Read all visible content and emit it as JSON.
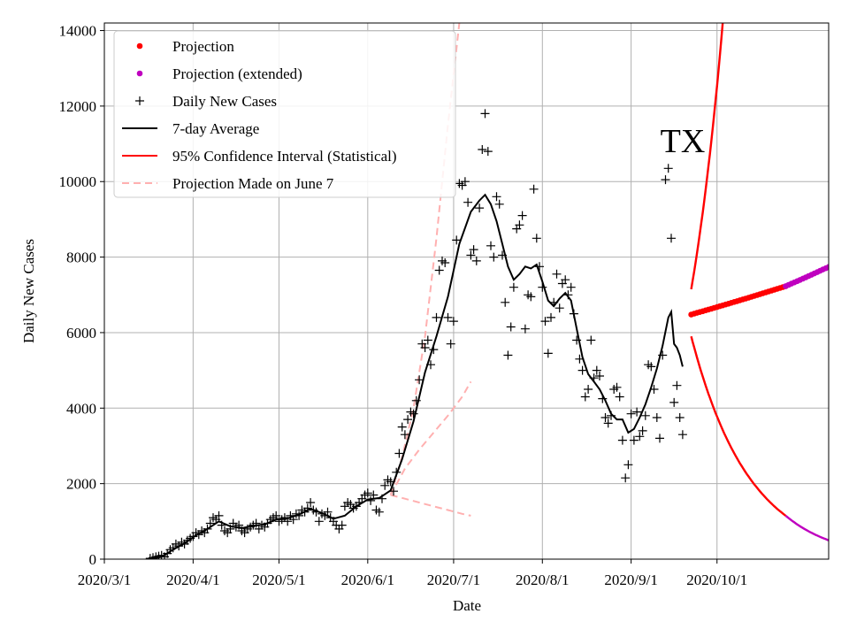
{
  "chart_data": {
    "type": "line",
    "title": "",
    "annotation": "TX",
    "xlabel": "Date",
    "ylabel": "Daily New Cases",
    "xlim": [
      "2020-03-01",
      "2020-11-09"
    ],
    "ylim": [
      0,
      14200
    ],
    "grid": true,
    "legend_position": "top-left",
    "x_ticks": [
      "2020-03-01",
      "2020-04-01",
      "2020-05-01",
      "2020-06-01",
      "2020-07-01",
      "2020-08-01",
      "2020-09-01",
      "2020-10-01"
    ],
    "x_tick_labels": [
      "2020/3/1",
      "2020/4/1",
      "2020/5/1",
      "2020/6/1",
      "2020/7/1",
      "2020/8/1",
      "2020/9/1",
      "2020/10/1"
    ],
    "y_ticks": [
      0,
      2000,
      4000,
      6000,
      8000,
      10000,
      12000,
      14000
    ],
    "y_tick_labels": [
      "0",
      "2000",
      "4000",
      "6000",
      "8000",
      "10000",
      "12000",
      "14000"
    ],
    "legend": [
      {
        "key": "projection",
        "label": "Projection",
        "color": "#ff0000",
        "marker": "dot"
      },
      {
        "key": "projection_extended",
        "label": "Projection (extended)",
        "color": "#bf00bf",
        "marker": "dot"
      },
      {
        "key": "daily",
        "label": "Daily New Cases",
        "color": "#000000",
        "marker": "plus"
      },
      {
        "key": "avg",
        "label": "7-day Average",
        "color": "#000000",
        "marker": "line"
      },
      {
        "key": "ci",
        "label": "95% Confidence Interval (Statistical)",
        "color": "#ff0000",
        "marker": "line"
      },
      {
        "key": "june7",
        "label": "Projection Made on June 7",
        "color": "#ffb0b0",
        "marker": "dashed"
      }
    ],
    "daily_cases": [
      [
        16,
        20
      ],
      [
        17,
        40
      ],
      [
        18,
        60
      ],
      [
        19,
        80
      ],
      [
        20,
        100
      ],
      [
        21,
        60
      ],
      [
        22,
        150
      ],
      [
        23,
        250
      ],
      [
        24,
        300
      ],
      [
        25,
        400
      ],
      [
        26,
        350
      ],
      [
        27,
        450
      ],
      [
        28,
        400
      ],
      [
        29,
        500
      ],
      [
        30,
        550
      ],
      [
        31,
        600
      ],
      [
        32,
        700
      ],
      [
        33,
        650
      ],
      [
        34,
        750
      ],
      [
        35,
        700
      ],
      [
        36,
        800
      ],
      [
        37,
        950
      ],
      [
        38,
        1100
      ],
      [
        39,
        1050
      ],
      [
        40,
        1150
      ],
      [
        41,
        900
      ],
      [
        42,
        750
      ],
      [
        43,
        700
      ],
      [
        44,
        800
      ],
      [
        45,
        950
      ],
      [
        46,
        850
      ],
      [
        47,
        900
      ],
      [
        48,
        750
      ],
      [
        49,
        700
      ],
      [
        50,
        800
      ],
      [
        51,
        850
      ],
      [
        52,
        900
      ],
      [
        53,
        950
      ],
      [
        54,
        800
      ],
      [
        55,
        900
      ],
      [
        56,
        850
      ],
      [
        57,
        950
      ],
      [
        58,
        1050
      ],
      [
        59,
        1100
      ],
      [
        60,
        1150
      ],
      [
        61,
        1000
      ],
      [
        62,
        1050
      ],
      [
        63,
        1100
      ],
      [
        64,
        1000
      ],
      [
        65,
        1150
      ],
      [
        66,
        1050
      ],
      [
        67,
        1200
      ],
      [
        68,
        1150
      ],
      [
        69,
        1300
      ],
      [
        70,
        1250
      ],
      [
        71,
        1350
      ],
      [
        72,
        1500
      ],
      [
        73,
        1300
      ],
      [
        74,
        1250
      ],
      [
        75,
        1000
      ],
      [
        76,
        1200
      ],
      [
        77,
        1150
      ],
      [
        78,
        1250
      ],
      [
        79,
        1100
      ],
      [
        80,
        1000
      ],
      [
        81,
        900
      ],
      [
        82,
        800
      ],
      [
        83,
        900
      ],
      [
        84,
        1400
      ],
      [
        85,
        1500
      ],
      [
        86,
        1450
      ],
      [
        87,
        1350
      ],
      [
        88,
        1400
      ],
      [
        89,
        1500
      ],
      [
        90,
        1600
      ],
      [
        91,
        1700
      ],
      [
        92,
        1750
      ],
      [
        93,
        1550
      ],
      [
        94,
        1700
      ],
      [
        95,
        1300
      ],
      [
        96,
        1250
      ],
      [
        97,
        1600
      ],
      [
        98,
        1950
      ],
      [
        99,
        2100
      ],
      [
        100,
        2050
      ],
      [
        101,
        1800
      ],
      [
        102,
        2300
      ],
      [
        103,
        2800
      ],
      [
        104,
        3500
      ],
      [
        105,
        3300
      ],
      [
        106,
        3700
      ],
      [
        107,
        3900
      ],
      [
        108,
        3850
      ],
      [
        109,
        4200
      ],
      [
        110,
        4750
      ],
      [
        111,
        5700
      ],
      [
        112,
        5600
      ],
      [
        113,
        5800
      ],
      [
        114,
        5150
      ],
      [
        115,
        5550
      ],
      [
        116,
        6400
      ],
      [
        117,
        7650
      ],
      [
        118,
        7900
      ],
      [
        119,
        7850
      ],
      [
        120,
        6400
      ],
      [
        121,
        5700
      ],
      [
        122,
        6300
      ],
      [
        123,
        8450
      ],
      [
        124,
        9950
      ],
      [
        125,
        9900
      ],
      [
        126,
        10000
      ],
      [
        127,
        9450
      ],
      [
        128,
        8050
      ],
      [
        129,
        8200
      ],
      [
        130,
        7900
      ],
      [
        131,
        9300
      ],
      [
        132,
        10850
      ],
      [
        133,
        11800
      ],
      [
        134,
        10800
      ],
      [
        135,
        8300
      ],
      [
        136,
        8000
      ],
      [
        137,
        9600
      ],
      [
        138,
        9400
      ],
      [
        139,
        8050
      ],
      [
        140,
        6800
      ],
      [
        141,
        5400
      ],
      [
        142,
        6150
      ],
      [
        143,
        7200
      ],
      [
        144,
        8750
      ],
      [
        145,
        8850
      ],
      [
        146,
        9100
      ],
      [
        147,
        6100
      ],
      [
        148,
        7000
      ],
      [
        149,
        6950
      ],
      [
        150,
        9800
      ],
      [
        151,
        8500
      ],
      [
        152,
        7750
      ],
      [
        153,
        7200
      ],
      [
        154,
        6300
      ],
      [
        155,
        5450
      ],
      [
        156,
        6400
      ],
      [
        157,
        6800
      ],
      [
        158,
        7550
      ],
      [
        159,
        6650
      ],
      [
        160,
        7300
      ],
      [
        161,
        7400
      ],
      [
        162,
        7000
      ],
      [
        163,
        7200
      ],
      [
        164,
        6500
      ],
      [
        165,
        5800
      ],
      [
        166,
        5300
      ],
      [
        167,
        5000
      ],
      [
        168,
        4300
      ],
      [
        169,
        4500
      ],
      [
        170,
        5800
      ],
      [
        171,
        4800
      ],
      [
        172,
        5000
      ],
      [
        173,
        4850
      ],
      [
        174,
        4250
      ],
      [
        175,
        3750
      ],
      [
        176,
        3600
      ],
      [
        177,
        3800
      ],
      [
        178,
        4500
      ],
      [
        179,
        4550
      ],
      [
        180,
        4300
      ],
      [
        181,
        3150
      ],
      [
        182,
        2150
      ],
      [
        183,
        2500
      ],
      [
        184,
        3850
      ],
      [
        185,
        3150
      ],
      [
        186,
        3900
      ],
      [
        187,
        3250
      ],
      [
        188,
        3400
      ],
      [
        189,
        3800
      ],
      [
        190,
        5150
      ],
      [
        191,
        5100
      ],
      [
        192,
        4500
      ],
      [
        193,
        3750
      ],
      [
        194,
        3200
      ],
      [
        195,
        5400
      ],
      [
        196,
        10050
      ],
      [
        197,
        10350
      ],
      [
        198,
        8500
      ],
      [
        199,
        4150
      ],
      [
        200,
        4600
      ],
      [
        201,
        3750
      ],
      [
        202,
        3300
      ]
    ],
    "seven_day_avg": [
      [
        16,
        0
      ],
      [
        20,
        60
      ],
      [
        24,
        250
      ],
      [
        28,
        420
      ],
      [
        32,
        630
      ],
      [
        36,
        800
      ],
      [
        40,
        1000
      ],
      [
        44,
        870
      ],
      [
        48,
        820
      ],
      [
        52,
        880
      ],
      [
        56,
        920
      ],
      [
        60,
        1050
      ],
      [
        64,
        1080
      ],
      [
        68,
        1180
      ],
      [
        72,
        1330
      ],
      [
        76,
        1220
      ],
      [
        80,
        1070
      ],
      [
        84,
        1150
      ],
      [
        88,
        1400
      ],
      [
        92,
        1580
      ],
      [
        96,
        1620
      ],
      [
        100,
        1820
      ],
      [
        104,
        2650
      ],
      [
        108,
        3650
      ],
      [
        112,
        4950
      ],
      [
        116,
        5900
      ],
      [
        120,
        6950
      ],
      [
        124,
        8350
      ],
      [
        128,
        9200
      ],
      [
        131,
        9500
      ],
      [
        133,
        9650
      ],
      [
        135,
        9400
      ],
      [
        137,
        8950
      ],
      [
        139,
        8350
      ],
      [
        141,
        7750
      ],
      [
        143,
        7400
      ],
      [
        145,
        7550
      ],
      [
        147,
        7750
      ],
      [
        149,
        7700
      ],
      [
        151,
        7800
      ],
      [
        153,
        7350
      ],
      [
        155,
        6850
      ],
      [
        157,
        6700
      ],
      [
        159,
        6900
      ],
      [
        161,
        7050
      ],
      [
        163,
        6850
      ],
      [
        165,
        6100
      ],
      [
        167,
        5350
      ],
      [
        169,
        4900
      ],
      [
        171,
        4700
      ],
      [
        173,
        4500
      ],
      [
        175,
        4200
      ],
      [
        177,
        3850
      ],
      [
        179,
        3700
      ],
      [
        181,
        3700
      ],
      [
        183,
        3350
      ],
      [
        185,
        3450
      ],
      [
        187,
        3750
      ],
      [
        189,
        4100
      ],
      [
        191,
        4550
      ],
      [
        193,
        5050
      ],
      [
        195,
        5650
      ],
      [
        197,
        6400
      ],
      [
        198,
        6550
      ],
      [
        199,
        5700
      ],
      [
        200,
        5600
      ],
      [
        201,
        5400
      ],
      [
        202,
        5100
      ]
    ],
    "june7_projection": {
      "center": [
        [
          100,
          1700
        ],
        [
          105,
          2400
        ],
        [
          110,
          2900
        ],
        [
          115,
          3350
        ],
        [
          120,
          3800
        ],
        [
          125,
          4300
        ],
        [
          128,
          4700
        ]
      ],
      "upper": [
        [
          100,
          1700
        ],
        [
          104,
          2700
        ],
        [
          108,
          4000
        ],
        [
          112,
          5900
        ],
        [
          116,
          8500
        ],
        [
          120,
          11500
        ],
        [
          124,
          14200
        ]
      ],
      "lower": [
        [
          100,
          1700
        ],
        [
          105,
          1600
        ],
        [
          110,
          1500
        ],
        [
          115,
          1400
        ],
        [
          120,
          1300
        ],
        [
          125,
          1200
        ],
        [
          128,
          1150
        ]
      ]
    },
    "projection": {
      "start_day": 205,
      "end_day": 238,
      "start_value": 6480,
      "end_value": 7230
    },
    "projection_extended": {
      "start_day": 238,
      "end_day": 267,
      "start_value": 7230,
      "end_value": 8250
    },
    "ci_upper": {
      "start_day": 205,
      "start_value": 7150,
      "top_day": 216,
      "top_value": 14200
    },
    "ci_lower": {
      "start_day": 205,
      "start_value": 5900,
      "end_day": 238,
      "end_value": 1150
    },
    "ci_lower_extended": {
      "start_day": 238,
      "start_value": 1150,
      "end_day": 267,
      "end_value": 230
    }
  }
}
